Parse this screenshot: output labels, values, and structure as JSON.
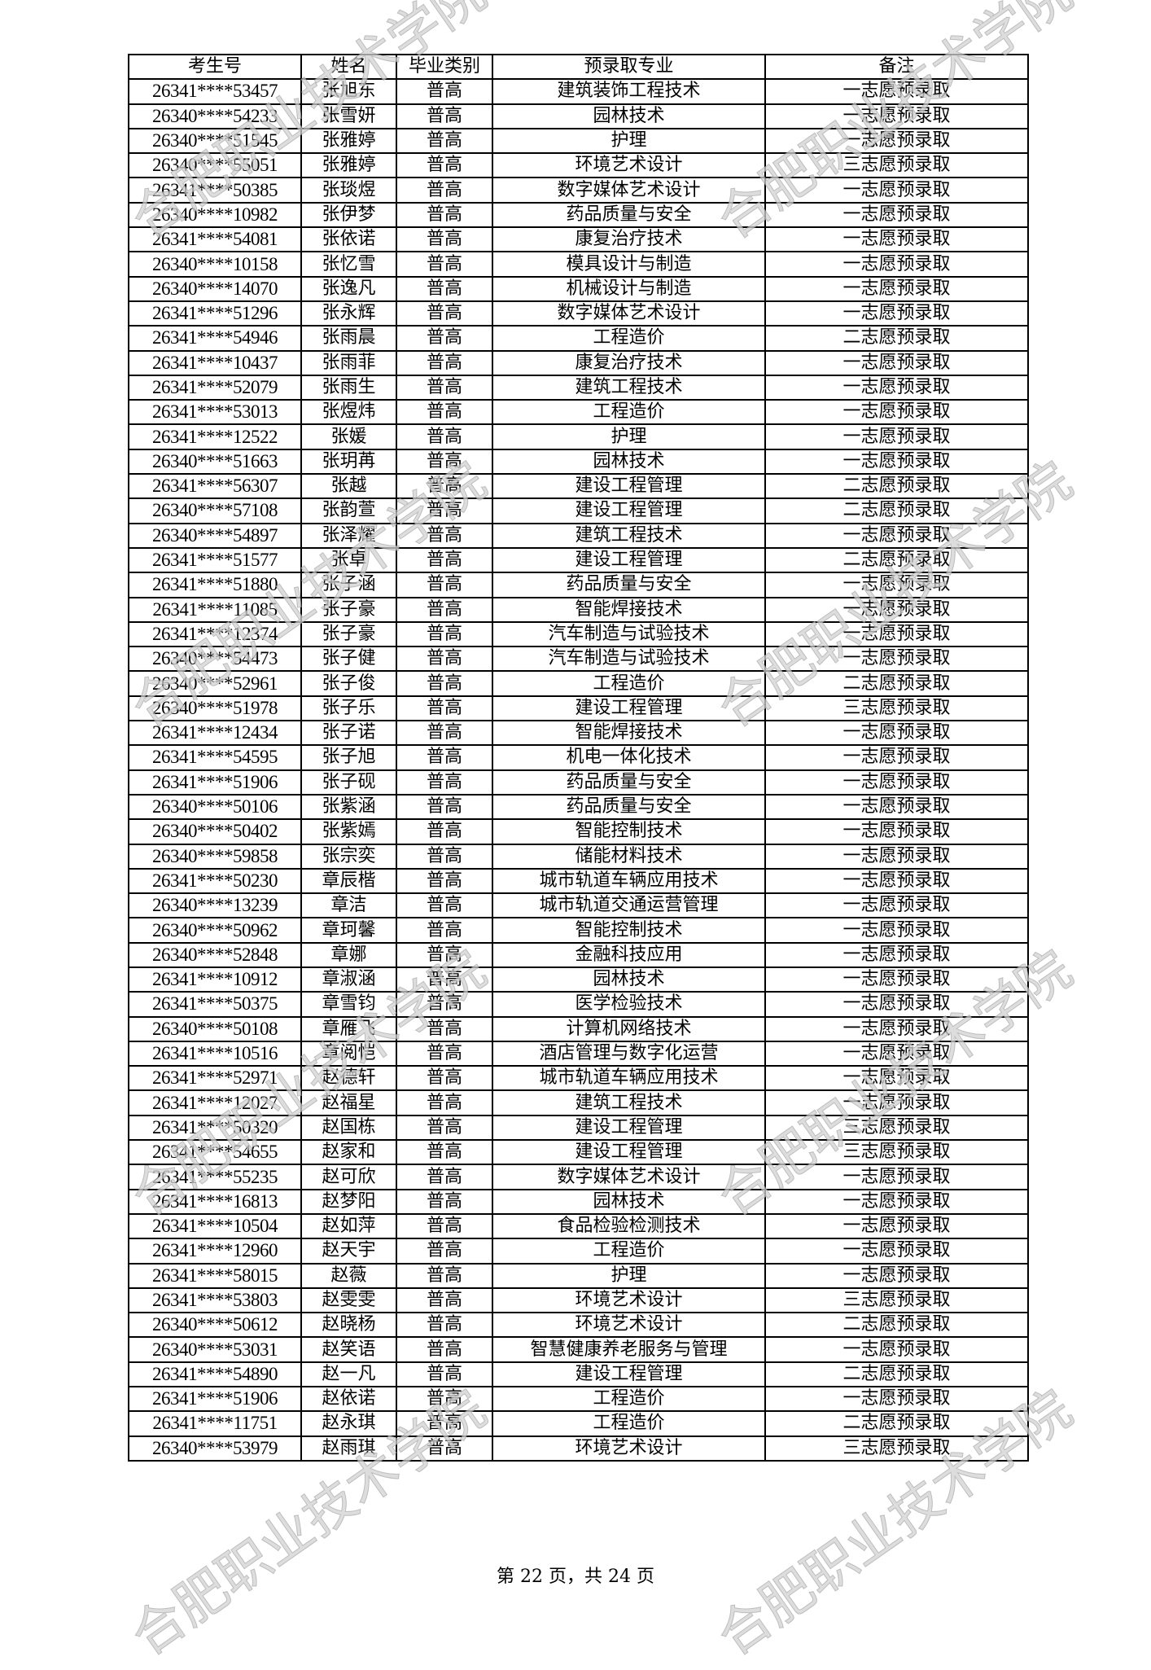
{
  "watermark": "合肥职业技术学院",
  "table": {
    "headers": [
      "考生号",
      "姓名",
      "毕业类别",
      "预录取专业",
      "备注"
    ],
    "rows": [
      [
        "26341****53457",
        "张旭东",
        "普高",
        "建筑装饰工程技术",
        "一志愿预录取"
      ],
      [
        "26340****54233",
        "张雪妍",
        "普高",
        "园林技术",
        "一志愿预录取"
      ],
      [
        "26340****51545",
        "张雅婷",
        "普高",
        "护理",
        "一志愿预录取"
      ],
      [
        "26340****55051",
        "张雅婷",
        "普高",
        "环境艺术设计",
        "三志愿预录取"
      ],
      [
        "26341****50385",
        "张琰煜",
        "普高",
        "数字媒体艺术设计",
        "一志愿预录取"
      ],
      [
        "26340****10982",
        "张伊梦",
        "普高",
        "药品质量与安全",
        "一志愿预录取"
      ],
      [
        "26341****54081",
        "张依诺",
        "普高",
        "康复治疗技术",
        "一志愿预录取"
      ],
      [
        "26340****10158",
        "张忆雪",
        "普高",
        "模具设计与制造",
        "一志愿预录取"
      ],
      [
        "26340****14070",
        "张逸凡",
        "普高",
        "机械设计与制造",
        "一志愿预录取"
      ],
      [
        "26341****51296",
        "张永辉",
        "普高",
        "数字媒体艺术设计",
        "一志愿预录取"
      ],
      [
        "26341****54946",
        "张雨晨",
        "普高",
        "工程造价",
        "二志愿预录取"
      ],
      [
        "26341****10437",
        "张雨菲",
        "普高",
        "康复治疗技术",
        "一志愿预录取"
      ],
      [
        "26341****52079",
        "张雨生",
        "普高",
        "建筑工程技术",
        "一志愿预录取"
      ],
      [
        "26341****53013",
        "张煜炜",
        "普高",
        "工程造价",
        "一志愿预录取"
      ],
      [
        "26341****12522",
        "张媛",
        "普高",
        "护理",
        "一志愿预录取"
      ],
      [
        "26340****51663",
        "张玥苒",
        "普高",
        "园林技术",
        "一志愿预录取"
      ],
      [
        "26341****56307",
        "张越",
        "普高",
        "建设工程管理",
        "二志愿预录取"
      ],
      [
        "26340****57108",
        "张韵萱",
        "普高",
        "建设工程管理",
        "二志愿预录取"
      ],
      [
        "26340****54897",
        "张泽耀",
        "普高",
        "建筑工程技术",
        "一志愿预录取"
      ],
      [
        "26341****51577",
        "张卓",
        "普高",
        "建设工程管理",
        "二志愿预录取"
      ],
      [
        "26341****51880",
        "张子涵",
        "普高",
        "药品质量与安全",
        "一志愿预录取"
      ],
      [
        "26341****11085",
        "张子豪",
        "普高",
        "智能焊接技术",
        "一志愿预录取"
      ],
      [
        "26341****12374",
        "张子豪",
        "普高",
        "汽车制造与试验技术",
        "一志愿预录取"
      ],
      [
        "26340****54473",
        "张子健",
        "普高",
        "汽车制造与试验技术",
        "一志愿预录取"
      ],
      [
        "26340****52961",
        "张子俊",
        "普高",
        "工程造价",
        "二志愿预录取"
      ],
      [
        "26340****51978",
        "张子乐",
        "普高",
        "建设工程管理",
        "三志愿预录取"
      ],
      [
        "26341****12434",
        "张子诺",
        "普高",
        "智能焊接技术",
        "一志愿预录取"
      ],
      [
        "26341****54595",
        "张子旭",
        "普高",
        "机电一体化技术",
        "一志愿预录取"
      ],
      [
        "26341****51906",
        "张子砚",
        "普高",
        "药品质量与安全",
        "一志愿预录取"
      ],
      [
        "26340****50106",
        "张紫涵",
        "普高",
        "药品质量与安全",
        "一志愿预录取"
      ],
      [
        "26340****50402",
        "张紫嫣",
        "普高",
        "智能控制技术",
        "一志愿预录取"
      ],
      [
        "26340****59858",
        "张宗奕",
        "普高",
        "储能材料技术",
        "一志愿预录取"
      ],
      [
        "26341****50230",
        "章辰楷",
        "普高",
        "城市轨道车辆应用技术",
        "一志愿预录取"
      ],
      [
        "26340****13239",
        "章洁",
        "普高",
        "城市轨道交通运营管理",
        "一志愿预录取"
      ],
      [
        "26340****50962",
        "章珂馨",
        "普高",
        "智能控制技术",
        "一志愿预录取"
      ],
      [
        "26340****52848",
        "章娜",
        "普高",
        "金融科技应用",
        "一志愿预录取"
      ],
      [
        "26341****10912",
        "章淑涵",
        "普高",
        "园林技术",
        "一志愿预录取"
      ],
      [
        "26341****50375",
        "章雪钧",
        "普高",
        "医学检验技术",
        "一志愿预录取"
      ],
      [
        "26340****50108",
        "章雁飞",
        "普高",
        "计算机网络技术",
        "一志愿预录取"
      ],
      [
        "26341****10516",
        "章阅恺",
        "普高",
        "酒店管理与数字化运营",
        "一志愿预录取"
      ],
      [
        "26341****52971",
        "赵德轩",
        "普高",
        "城市轨道车辆应用技术",
        "一志愿预录取"
      ],
      [
        "26341****12027",
        "赵福星",
        "普高",
        "建筑工程技术",
        "一志愿预录取"
      ],
      [
        "26341****50320",
        "赵国栋",
        "普高",
        "建设工程管理",
        "三志愿预录取"
      ],
      [
        "26341****54655",
        "赵家和",
        "普高",
        "建设工程管理",
        "三志愿预录取"
      ],
      [
        "26341****55235",
        "赵可欣",
        "普高",
        "数字媒体艺术设计",
        "一志愿预录取"
      ],
      [
        "26341****16813",
        "赵梦阳",
        "普高",
        "园林技术",
        "一志愿预录取"
      ],
      [
        "26341****10504",
        "赵如萍",
        "普高",
        "食品检验检测技术",
        "一志愿预录取"
      ],
      [
        "26341****12960",
        "赵天宇",
        "普高",
        "工程造价",
        "一志愿预录取"
      ],
      [
        "26341****58015",
        "赵薇",
        "普高",
        "护理",
        "一志愿预录取"
      ],
      [
        "26341****53803",
        "赵雯雯",
        "普高",
        "环境艺术设计",
        "三志愿预录取"
      ],
      [
        "26340****50612",
        "赵晓杨",
        "普高",
        "环境艺术设计",
        "二志愿预录取"
      ],
      [
        "26340****53031",
        "赵笑语",
        "普高",
        "智慧健康养老服务与管理",
        "一志愿预录取"
      ],
      [
        "26341****54890",
        "赵一凡",
        "普高",
        "建设工程管理",
        "二志愿预录取"
      ],
      [
        "26341****51906",
        "赵依诺",
        "普高",
        "工程造价",
        "一志愿预录取"
      ],
      [
        "26341****11751",
        "赵永琪",
        "普高",
        "工程造价",
        "二志愿预录取"
      ],
      [
        "26340****53979",
        "赵雨琪",
        "普高",
        "环境艺术设计",
        "三志愿预录取"
      ]
    ]
  },
  "footer": {
    "page_text": "第 22 页，共 24 页"
  }
}
